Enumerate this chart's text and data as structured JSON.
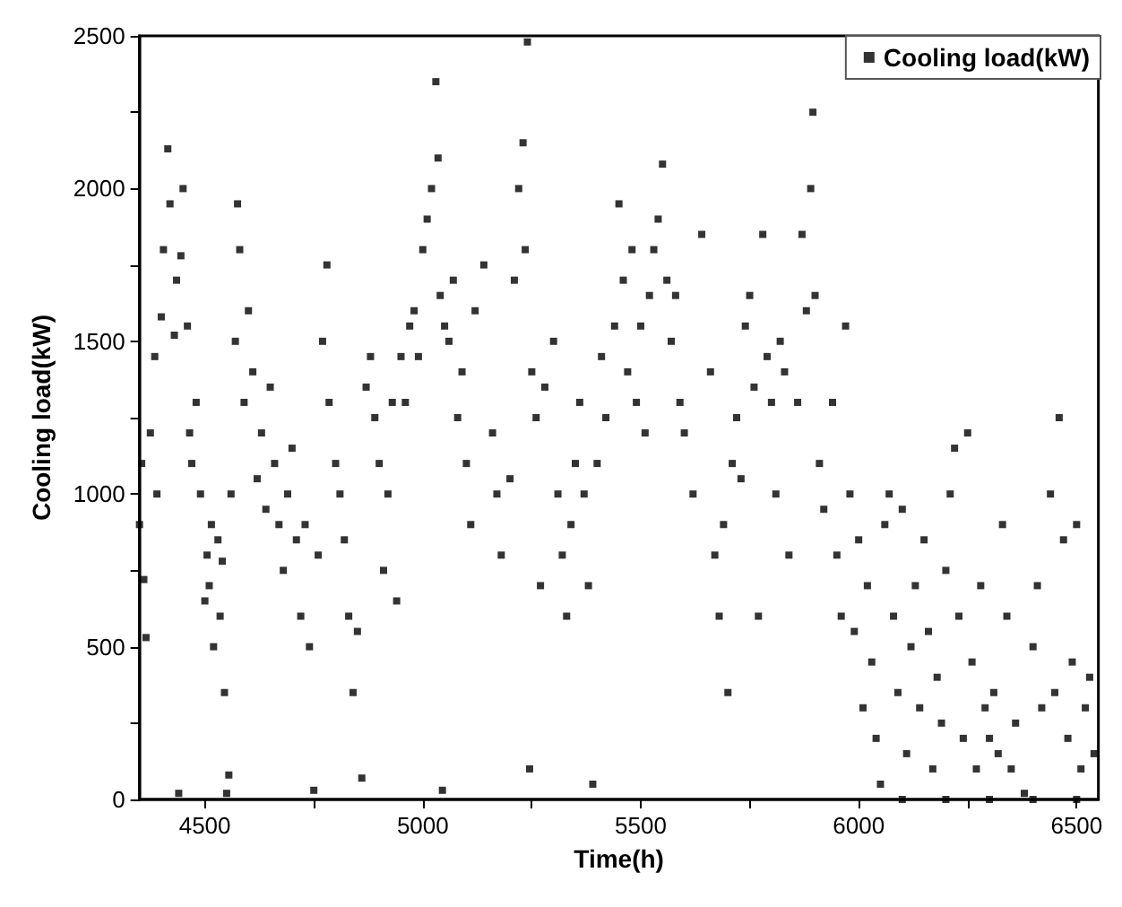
{
  "chart_data": {
    "type": "scatter",
    "xlabel": "Time(h)",
    "ylabel": "Cooling load(kW)",
    "xlim": [
      4350,
      6550
    ],
    "ylim": [
      0,
      2500
    ],
    "xticks": [
      4500,
      {
        "value": 4750,
        "label": null
      },
      5000,
      {
        "value": 5250,
        "label": null
      },
      5500,
      {
        "value": 5750,
        "label": null
      },
      6000,
      {
        "value": 6250,
        "label": null
      },
      6500
    ],
    "yticks": [
      0,
      {
        "value": 250,
        "label": null
      },
      500,
      {
        "value": 750,
        "label": null
      },
      1000,
      {
        "value": 1250,
        "label": null
      },
      1500,
      {
        "value": 1750,
        "label": null
      },
      2000,
      {
        "value": 2250,
        "label": null
      },
      2500
    ],
    "grid": false,
    "legend": "top right",
    "marker": "square",
    "series": [
      {
        "name": "Cooling load(kW)",
        "color": "#000000",
        "x": [
          4350,
          4355,
          4360,
          4365,
          4375,
          4385,
          4390,
          4400,
          4405,
          4415,
          4420,
          4430,
          4435,
          4440,
          4445,
          4450,
          4460,
          4465,
          4470,
          4480,
          4490,
          4500,
          4505,
          4510,
          4515,
          4520,
          4530,
          4535,
          4540,
          4545,
          4550,
          4555,
          4560,
          4570,
          4575,
          4580,
          4590,
          4600,
          4610,
          4620,
          4630,
          4640,
          4650,
          4660,
          4670,
          4680,
          4690,
          4700,
          4710,
          4720,
          4730,
          4740,
          4750,
          4760,
          4770,
          4780,
          4785,
          4800,
          4810,
          4820,
          4830,
          4840,
          4850,
          4860,
          4870,
          4880,
          4890,
          4900,
          4910,
          4920,
          4930,
          4940,
          4950,
          4960,
          4970,
          4980,
          4990,
          5000,
          5010,
          5020,
          5030,
          5035,
          5040,
          5045,
          5050,
          5060,
          5070,
          5080,
          5090,
          5100,
          5110,
          5120,
          5140,
          5160,
          5170,
          5180,
          5200,
          5210,
          5220,
          5230,
          5235,
          5240,
          5245,
          5250,
          5260,
          5270,
          5280,
          5300,
          5310,
          5320,
          5330,
          5340,
          5350,
          5360,
          5370,
          5380,
          5390,
          5400,
          5410,
          5420,
          5440,
          5450,
          5460,
          5470,
          5480,
          5490,
          5500,
          5510,
          5520,
          5530,
          5540,
          5550,
          5560,
          5570,
          5580,
          5590,
          5600,
          5620,
          5640,
          5660,
          5670,
          5680,
          5690,
          5700,
          5710,
          5720,
          5730,
          5740,
          5750,
          5760,
          5770,
          5780,
          5790,
          5800,
          5810,
          5820,
          5830,
          5840,
          5860,
          5870,
          5880,
          5890,
          5895,
          5900,
          5910,
          5920,
          5940,
          5950,
          5960,
          5970,
          5980,
          5990,
          6000,
          6010,
          6020,
          6030,
          6040,
          6050,
          6060,
          6070,
          6080,
          6090,
          6100,
          6110,
          6120,
          6130,
          6140,
          6150,
          6160,
          6170,
          6180,
          6190,
          6200,
          6210,
          6220,
          6230,
          6240,
          6250,
          6260,
          6270,
          6280,
          6290,
          6300,
          6310,
          6320,
          6330,
          6340,
          6350,
          6360,
          6380,
          6400,
          6410,
          6420,
          6440,
          6450,
          6460,
          6470,
          6480,
          6490,
          6500,
          6510,
          6520,
          6530,
          6540,
          6100,
          6200,
          6300,
          6400,
          6500
        ],
        "values": [
          900,
          1100,
          720,
          530,
          1200,
          1450,
          1000,
          1580,
          1800,
          2130,
          1950,
          1520,
          1700,
          20,
          1780,
          2000,
          1550,
          1200,
          1100,
          1300,
          1000,
          650,
          800,
          700,
          900,
          500,
          850,
          600,
          780,
          350,
          20,
          80,
          1000,
          1500,
          1950,
          1800,
          1300,
          1600,
          1400,
          1050,
          1200,
          950,
          1350,
          1100,
          900,
          750,
          1000,
          1150,
          850,
          600,
          900,
          500,
          30,
          800,
          1500,
          1750,
          1300,
          1100,
          1000,
          850,
          600,
          350,
          550,
          70,
          1350,
          1450,
          1250,
          1100,
          750,
          1000,
          1300,
          650,
          1450,
          1300,
          1550,
          1600,
          1450,
          1800,
          1900,
          2000,
          2350,
          2100,
          1650,
          30,
          1550,
          1500,
          1700,
          1250,
          1400,
          1100,
          900,
          1600,
          1750,
          1200,
          1000,
          800,
          1050,
          1700,
          2000,
          2150,
          1800,
          2480,
          100,
          1400,
          1250,
          700,
          1350,
          1500,
          1000,
          800,
          600,
          900,
          1100,
          1300,
          1000,
          700,
          50,
          1100,
          1450,
          1250,
          1550,
          1950,
          1700,
          1400,
          1800,
          1300,
          1550,
          1200,
          1650,
          1800,
          1900,
          2080,
          1700,
          1500,
          1650,
          1300,
          1200,
          1000,
          1850,
          1400,
          800,
          600,
          900,
          350,
          1100,
          1250,
          1050,
          1550,
          1650,
          1350,
          600,
          1850,
          1450,
          1300,
          1000,
          1500,
          1400,
          800,
          1300,
          1850,
          1600,
          2000,
          2250,
          1650,
          1100,
          950,
          1300,
          800,
          600,
          1550,
          1000,
          550,
          850,
          300,
          700,
          450,
          200,
          50,
          900,
          1000,
          600,
          350,
          950,
          150,
          500,
          700,
          300,
          850,
          550,
          100,
          400,
          250,
          750,
          1000,
          1150,
          600,
          200,
          1200,
          450,
          100,
          700,
          300,
          200,
          350,
          150,
          900,
          600,
          100,
          250,
          20,
          500,
          700,
          300,
          1000,
          350,
          1250,
          850,
          200,
          450,
          900,
          100,
          300,
          400,
          150,
          0,
          0,
          0,
          0,
          0
        ]
      }
    ]
  }
}
